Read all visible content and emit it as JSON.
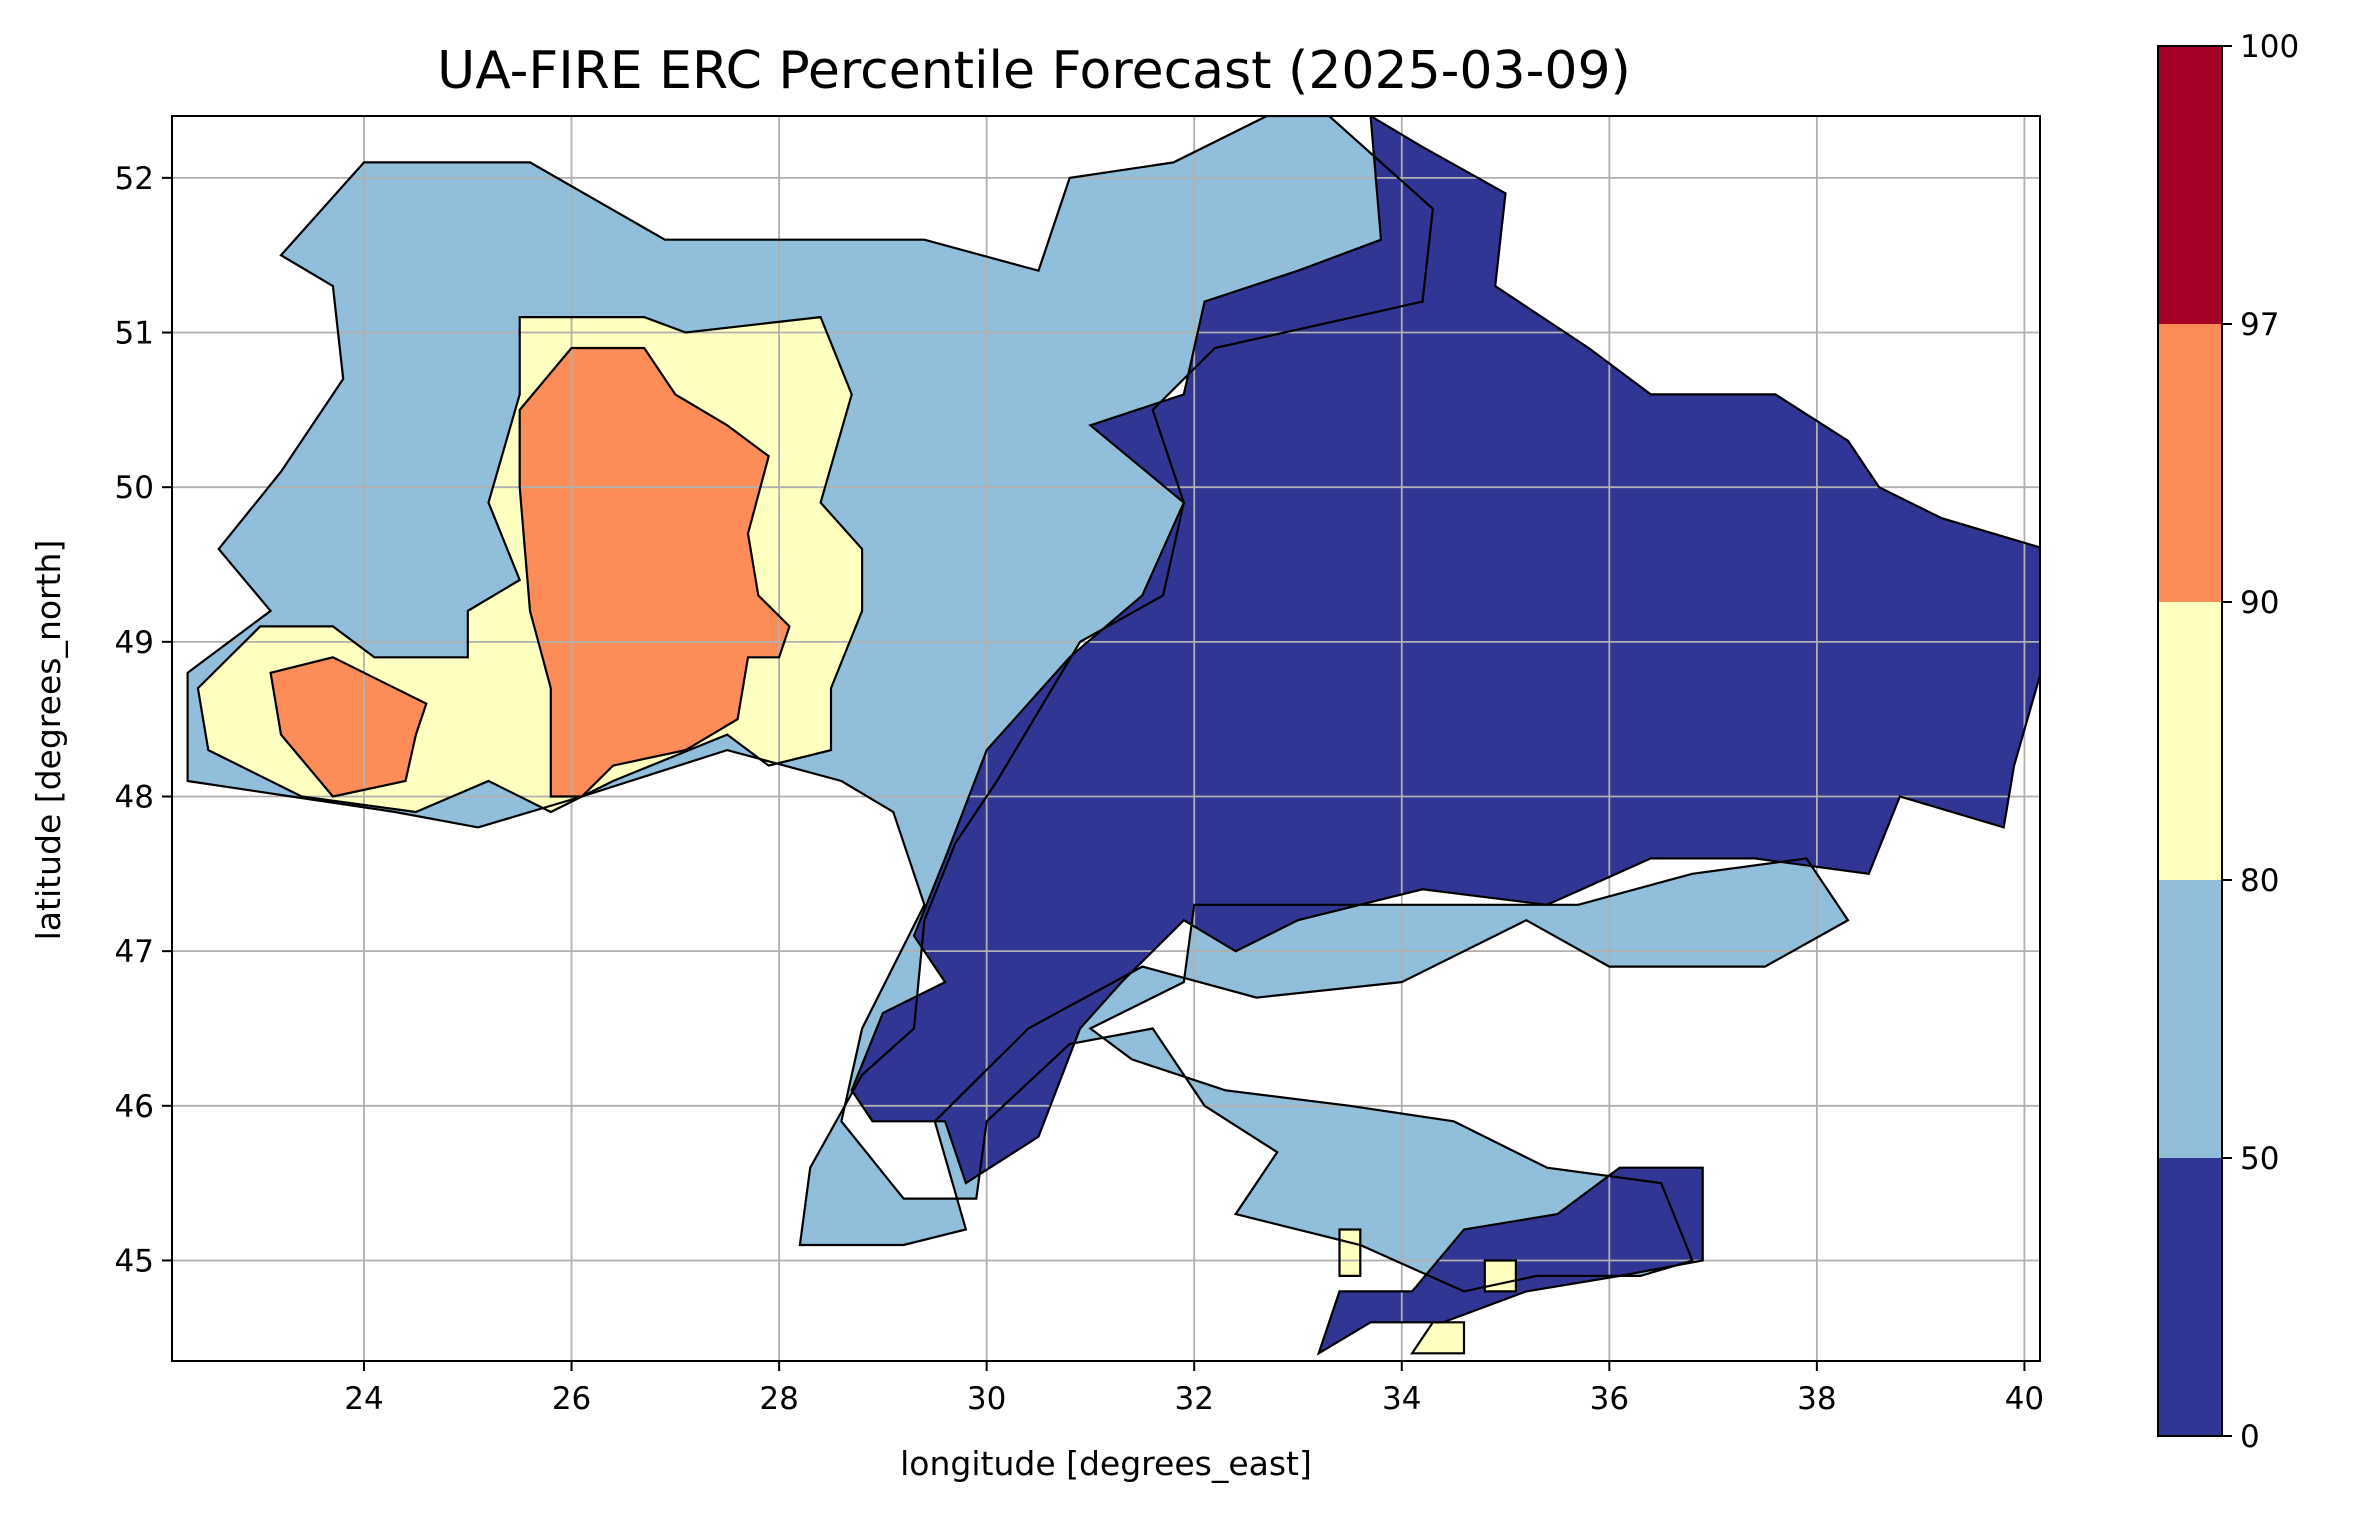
{
  "title": "UA-FIRE ERC Percentile Forecast (2025-03-09)",
  "xlabel": "longitude [degrees_east]",
  "ylabel": "latitude [degrees_north]",
  "x_range": [
    22.15,
    40.15
  ],
  "y_range": [
    44.35,
    52.4
  ],
  "x_ticks": [
    24,
    26,
    28,
    30,
    32,
    34,
    36,
    38,
    40
  ],
  "y_ticks": [
    45,
    46,
    47,
    48,
    49,
    50,
    51,
    52
  ],
  "grid": true,
  "colorbar": {
    "bounds": [
      0,
      50,
      80,
      90,
      97,
      100
    ],
    "colors": [
      "#313695",
      "#91bfdb",
      "#ffffbf",
      "#fc8d59",
      "#a50026"
    ],
    "tick_labels": [
      "0",
      "50",
      "80",
      "90",
      "97",
      "100"
    ]
  },
  "chart_data": {
    "type": "heatmap",
    "title": "UA-FIRE ERC Percentile Forecast (2025-03-09)",
    "xlabel": "longitude [degrees_east]",
    "ylabel": "latitude [degrees_north]",
    "xlim": [
      22.15,
      40.15
    ],
    "ylim": [
      44.35,
      52.4
    ],
    "grid": true,
    "class_bounds": [
      0,
      50,
      80,
      90,
      97,
      100
    ],
    "regions": [
      {
        "class": "50-80",
        "polygon": [
          [
            23.2,
            51.5
          ],
          [
            24.0,
            52.1
          ],
          [
            25.6,
            52.1
          ],
          [
            26.9,
            51.6
          ],
          [
            28.3,
            51.6
          ],
          [
            29.4,
            51.6
          ],
          [
            30.5,
            51.4
          ],
          [
            30.8,
            52.0
          ],
          [
            31.8,
            52.1
          ],
          [
            32.7,
            52.4
          ],
          [
            33.3,
            52.4
          ],
          [
            34.3,
            51.8
          ],
          [
            34.2,
            51.2
          ],
          [
            32.2,
            50.9
          ],
          [
            31.6,
            50.5
          ],
          [
            31.9,
            49.9
          ],
          [
            31.7,
            49.3
          ],
          [
            30.9,
            49.0
          ],
          [
            30.1,
            48.1
          ],
          [
            29.7,
            47.7
          ],
          [
            29.4,
            47.2
          ],
          [
            29.3,
            46.5
          ],
          [
            28.8,
            46.2
          ],
          [
            28.3,
            45.6
          ],
          [
            28.2,
            45.1
          ],
          [
            29.2,
            45.1
          ],
          [
            29.8,
            45.2
          ],
          [
            29.5,
            45.9
          ],
          [
            30.4,
            46.5
          ],
          [
            31.5,
            46.9
          ],
          [
            32.6,
            46.7
          ],
          [
            34.0,
            46.8
          ],
          [
            35.2,
            47.2
          ],
          [
            36.0,
            46.9
          ],
          [
            37.5,
            46.9
          ],
          [
            38.3,
            47.2
          ],
          [
            37.9,
            47.6
          ],
          [
            36.8,
            47.5
          ],
          [
            35.7,
            47.3
          ],
          [
            34.8,
            47.3
          ],
          [
            33.8,
            47.3
          ],
          [
            32.0,
            47.3
          ],
          [
            31.9,
            46.8
          ],
          [
            31.0,
            46.5
          ],
          [
            31.4,
            46.3
          ],
          [
            32.3,
            46.1
          ],
          [
            33.5,
            46.0
          ],
          [
            34.5,
            45.9
          ],
          [
            35.4,
            45.6
          ],
          [
            36.5,
            45.5
          ],
          [
            36.8,
            45.0
          ],
          [
            36.3,
            44.9
          ],
          [
            35.3,
            44.9
          ],
          [
            34.6,
            44.8
          ],
          [
            33.6,
            45.1
          ],
          [
            32.4,
            45.3
          ],
          [
            32.8,
            45.7
          ],
          [
            32.1,
            46.0
          ],
          [
            31.6,
            46.5
          ],
          [
            30.8,
            46.4
          ],
          [
            30.0,
            45.9
          ],
          [
            29.9,
            45.4
          ],
          [
            29.2,
            45.4
          ],
          [
            28.6,
            45.9
          ],
          [
            28.8,
            46.5
          ],
          [
            29.4,
            47.3
          ],
          [
            29.1,
            47.9
          ],
          [
            28.6,
            48.1
          ],
          [
            27.5,
            48.3
          ],
          [
            26.1,
            48.0
          ],
          [
            25.1,
            47.8
          ],
          [
            24.3,
            47.9
          ],
          [
            23.3,
            48.0
          ],
          [
            22.3,
            48.1
          ],
          [
            22.3,
            48.8
          ],
          [
            23.1,
            49.2
          ],
          [
            22.6,
            49.6
          ],
          [
            23.2,
            50.1
          ],
          [
            23.8,
            50.7
          ],
          [
            23.7,
            51.3
          ]
        ]
      },
      {
        "class": "80-90",
        "polygon": [
          [
            25.5,
            51.1
          ],
          [
            26.7,
            51.1
          ],
          [
            27.1,
            51.0
          ],
          [
            28.4,
            51.1
          ],
          [
            28.7,
            50.6
          ],
          [
            28.4,
            49.9
          ],
          [
            28.8,
            49.6
          ],
          [
            28.8,
            49.2
          ],
          [
            28.5,
            48.7
          ],
          [
            28.5,
            48.3
          ],
          [
            27.9,
            48.2
          ],
          [
            27.5,
            48.4
          ],
          [
            26.4,
            48.1
          ],
          [
            25.8,
            47.9
          ],
          [
            25.2,
            48.1
          ],
          [
            24.5,
            47.9
          ],
          [
            23.4,
            48.0
          ],
          [
            22.5,
            48.3
          ],
          [
            22.4,
            48.7
          ],
          [
            23.0,
            49.1
          ],
          [
            23.7,
            49.1
          ],
          [
            24.1,
            48.9
          ],
          [
            25.0,
            48.9
          ],
          [
            25.0,
            49.2
          ],
          [
            25.5,
            49.4
          ],
          [
            25.2,
            49.9
          ],
          [
            25.5,
            50.6
          ]
        ]
      },
      {
        "class": "90-97",
        "polygon": [
          [
            26.0,
            50.9
          ],
          [
            26.7,
            50.9
          ],
          [
            27.0,
            50.6
          ],
          [
            27.5,
            50.4
          ],
          [
            27.9,
            50.2
          ],
          [
            27.7,
            49.7
          ],
          [
            27.8,
            49.3
          ],
          [
            28.1,
            49.1
          ],
          [
            28.0,
            48.9
          ],
          [
            27.7,
            48.9
          ],
          [
            27.6,
            48.5
          ],
          [
            27.1,
            48.3
          ],
          [
            26.4,
            48.2
          ],
          [
            26.1,
            48.0
          ],
          [
            25.8,
            48.0
          ],
          [
            25.8,
            48.7
          ],
          [
            25.6,
            49.2
          ],
          [
            25.5,
            50.0
          ],
          [
            25.5,
            50.5
          ]
        ]
      },
      {
        "class": "90-97",
        "polygon": [
          [
            23.1,
            48.8
          ],
          [
            23.7,
            48.9
          ],
          [
            24.6,
            48.6
          ],
          [
            24.5,
            48.4
          ],
          [
            24.4,
            48.1
          ],
          [
            23.7,
            48.0
          ],
          [
            23.2,
            48.4
          ]
        ]
      },
      {
        "class": "0-50",
        "polygon": [
          [
            33.7,
            52.4
          ],
          [
            33.8,
            51.6
          ],
          [
            33.0,
            51.4
          ],
          [
            32.1,
            51.2
          ],
          [
            31.9,
            50.6
          ],
          [
            31.0,
            50.4
          ],
          [
            31.9,
            49.9
          ],
          [
            31.5,
            49.3
          ],
          [
            30.8,
            48.9
          ],
          [
            30.0,
            48.3
          ],
          [
            29.6,
            47.6
          ],
          [
            29.3,
            47.1
          ],
          [
            29.6,
            46.8
          ],
          [
            29.0,
            46.6
          ],
          [
            28.7,
            46.1
          ],
          [
            28.9,
            45.9
          ],
          [
            29.6,
            45.9
          ],
          [
            29.8,
            45.5
          ],
          [
            30.5,
            45.8
          ],
          [
            30.9,
            46.5
          ],
          [
            31.3,
            46.8
          ],
          [
            31.9,
            47.2
          ],
          [
            32.4,
            47.0
          ],
          [
            33.0,
            47.2
          ],
          [
            34.2,
            47.4
          ],
          [
            35.4,
            47.3
          ],
          [
            36.4,
            47.6
          ],
          [
            37.4,
            47.6
          ],
          [
            38.5,
            47.5
          ],
          [
            38.8,
            48.0
          ],
          [
            39.8,
            47.8
          ],
          [
            39.9,
            48.2
          ],
          [
            40.2,
            48.9
          ],
          [
            40.2,
            49.6
          ],
          [
            39.2,
            49.8
          ],
          [
            38.6,
            50.0
          ],
          [
            38.3,
            50.3
          ],
          [
            37.6,
            50.6
          ],
          [
            36.4,
            50.6
          ],
          [
            35.8,
            50.9
          ],
          [
            34.9,
            51.3
          ],
          [
            35.0,
            51.9
          ],
          [
            34.2,
            52.2
          ]
        ]
      },
      {
        "class": "0-50",
        "polygon": [
          [
            33.2,
            44.4
          ],
          [
            33.7,
            44.6
          ],
          [
            34.4,
            44.6
          ],
          [
            35.2,
            44.8
          ],
          [
            36.1,
            44.9
          ],
          [
            36.9,
            45.0
          ],
          [
            36.9,
            45.6
          ],
          [
            36.1,
            45.6
          ],
          [
            35.5,
            45.3
          ],
          [
            34.6,
            45.2
          ],
          [
            34.1,
            44.8
          ],
          [
            33.4,
            44.8
          ]
        ]
      },
      {
        "class": "80-90",
        "polygon": [
          [
            33.4,
            45.2
          ],
          [
            33.6,
            45.2
          ],
          [
            33.6,
            44.9
          ],
          [
            33.4,
            44.9
          ]
        ]
      },
      {
        "class": "80-90",
        "polygon": [
          [
            34.1,
            44.4
          ],
          [
            34.6,
            44.4
          ],
          [
            34.6,
            44.6
          ],
          [
            34.3,
            44.6
          ]
        ]
      },
      {
        "class": "80-90",
        "polygon": [
          [
            34.8,
            44.8
          ],
          [
            35.1,
            44.8
          ],
          [
            35.1,
            45.0
          ],
          [
            34.8,
            45.0
          ]
        ]
      }
    ]
  }
}
